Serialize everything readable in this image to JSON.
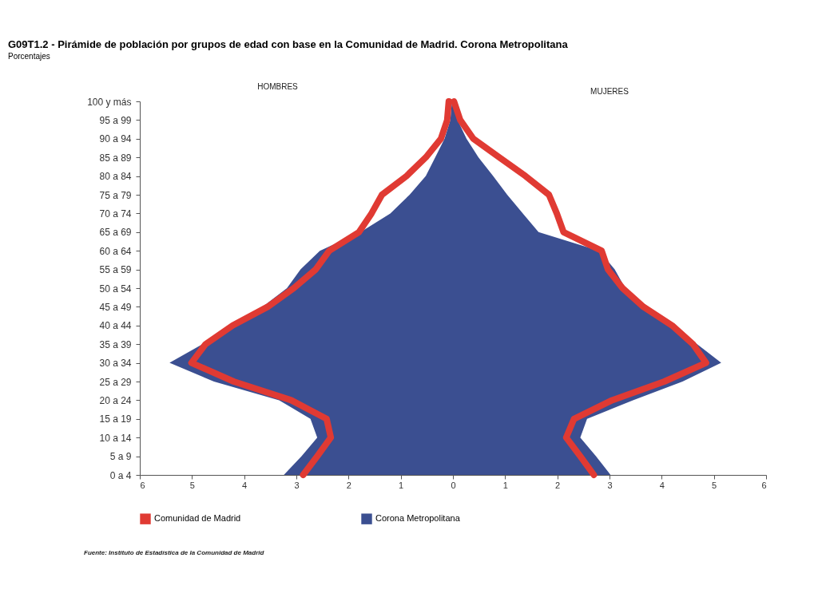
{
  "chart_data": {
    "type": "area",
    "orientation": "horizontal",
    "title": "G09T1.2 - Pirámide de población por grupos de edad con base en la Comunidad de Madrid. Corona Metropolitana",
    "subtitle": "Porcentajes",
    "categories": [
      "100 y más",
      "95 a 99",
      "90 a 94",
      "85 a 89",
      "80 a 84",
      "75 a 79",
      "70 a 74",
      "65 a 69",
      "60 a 64",
      "55 a 59",
      "50 a 54",
      "45 a 49",
      "40 a 44",
      "35 a 39",
      "30 a 34",
      "25 a 29",
      "20 a 24",
      "15 a 19",
      "10 a 14",
      "5 a 9",
      "0 a 4"
    ],
    "series": [
      {
        "name": "Comunidad de Madrid",
        "type": "line",
        "color": "#e03a33",
        "values": [
          -0.08,
          -0.11,
          -0.23,
          -0.52,
          -0.89,
          -1.36,
          -1.56,
          -1.8,
          -2.37,
          -2.63,
          -3.05,
          -3.55,
          -4.22,
          -4.74,
          -5.01,
          -4.2,
          -3.1,
          -2.42,
          -2.34,
          -2.6,
          -2.87
        ]
      },
      {
        "type": "line",
        "color": "#e03a33",
        "values": [
          0.02,
          0.14,
          0.39,
          0.89,
          1.39,
          1.84,
          1.99,
          2.12,
          2.85,
          2.97,
          3.25,
          3.65,
          4.2,
          4.6,
          4.85,
          4.05,
          3.05,
          2.32,
          2.17,
          2.44,
          2.7
        ]
      },
      {
        "name": "Corona Metropolitana",
        "type": "area",
        "color": "#3b4f91",
        "values": [
          -0.02,
          -0.05,
          -0.16,
          -0.34,
          -0.52,
          -0.83,
          -1.2,
          -1.77,
          -2.55,
          -2.92,
          -3.18,
          -3.65,
          -4.27,
          -4.8,
          -5.43,
          -4.58,
          -3.33,
          -2.73,
          -2.6,
          -2.9,
          -3.24
        ]
      },
      {
        "color": "#3b4f91",
        "values": [
          0.02,
          0.09,
          0.26,
          0.49,
          0.77,
          1.04,
          1.34,
          1.64,
          2.8,
          3.1,
          3.3,
          3.7,
          4.25,
          4.68,
          5.14,
          4.4,
          3.45,
          2.57,
          2.44,
          2.74,
          3.02
        ]
      }
    ],
    "xlim": [
      -6,
      6
    ],
    "xticks": [
      {
        "value": -6,
        "label": "6"
      },
      {
        "value": -5,
        "label": "5"
      },
      {
        "value": -4,
        "label": "4"
      },
      {
        "value": -3,
        "label": "3"
      },
      {
        "value": -2,
        "label": "2"
      },
      {
        "value": -1,
        "label": "1"
      },
      0,
      1,
      2,
      3,
      4,
      5,
      6
    ],
    "grid": false,
    "legend": "bottom",
    "annotations": [
      "HOMBRES",
      "MUJERES",
      "Fuente: Instituto de Estadística de la Comunidad de Madrid"
    ]
  }
}
